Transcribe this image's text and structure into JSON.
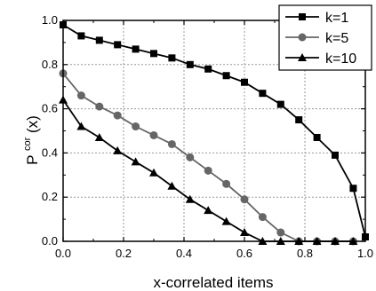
{
  "chart_data": {
    "type": "line",
    "xlabel": "x-correlated items",
    "ylabel_main": "P",
    "ylabel_sup": "cor",
    "ylabel_tail": "(x)",
    "xlim": [
      0.0,
      1.0
    ],
    "ylim": [
      0.0,
      1.0
    ],
    "x_ticks": [
      "0.0",
      "0.2",
      "0.4",
      "0.6",
      "0.8",
      "1.0"
    ],
    "y_ticks": [
      "0.0",
      "0.2",
      "0.4",
      "0.6",
      "0.8",
      "1.0"
    ],
    "grid": true,
    "legend_position": "top-right",
    "series": [
      {
        "name": "k=1",
        "marker": "square",
        "color": "#000000",
        "x": [
          0.0,
          0.06,
          0.12,
          0.18,
          0.24,
          0.3,
          0.36,
          0.42,
          0.48,
          0.54,
          0.6,
          0.66,
          0.72,
          0.78,
          0.84,
          0.9,
          0.96,
          1.0
        ],
        "y": [
          0.98,
          0.93,
          0.91,
          0.89,
          0.87,
          0.85,
          0.83,
          0.8,
          0.78,
          0.75,
          0.72,
          0.67,
          0.62,
          0.55,
          0.47,
          0.39,
          0.24,
          0.02
        ]
      },
      {
        "name": "k=5",
        "marker": "circle",
        "color": "#666666",
        "x": [
          0.0,
          0.06,
          0.12,
          0.18,
          0.24,
          0.3,
          0.36,
          0.42,
          0.48,
          0.54,
          0.6,
          0.66,
          0.72,
          0.78,
          0.84,
          0.9,
          0.96
        ],
        "y": [
          0.76,
          0.66,
          0.61,
          0.57,
          0.52,
          0.48,
          0.44,
          0.38,
          0.32,
          0.26,
          0.19,
          0.11,
          0.04,
          0.0,
          0.0,
          0.0,
          0.0
        ]
      },
      {
        "name": "k=10",
        "marker": "triangle",
        "color": "#000000",
        "x": [
          0.0,
          0.06,
          0.12,
          0.18,
          0.24,
          0.3,
          0.36,
          0.42,
          0.48,
          0.54,
          0.6,
          0.66,
          0.72,
          0.78,
          0.84,
          0.9,
          0.96
        ],
        "y": [
          0.64,
          0.52,
          0.47,
          0.41,
          0.36,
          0.31,
          0.25,
          0.19,
          0.14,
          0.09,
          0.04,
          0.0,
          0.0,
          0.0,
          0.0,
          0.0,
          0.0
        ]
      }
    ]
  }
}
